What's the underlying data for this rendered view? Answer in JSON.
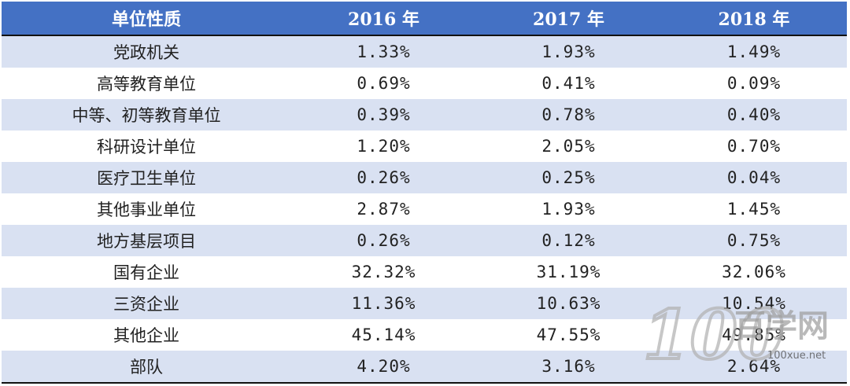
{
  "table": {
    "headers": [
      "单位性质",
      "2016 年",
      "2017 年",
      "2018 年"
    ],
    "rows": [
      [
        "党政机关",
        "1.33%",
        "1.93%",
        "1.49%"
      ],
      [
        "高等教育单位",
        "0.69%",
        "0.41%",
        "0.09%"
      ],
      [
        "中等、初等教育单位",
        "0.39%",
        "0.78%",
        "0.40%"
      ],
      [
        "科研设计单位",
        "1.20%",
        "2.05%",
        "0.70%"
      ],
      [
        "医疗卫生单位",
        "0.26%",
        "0.25%",
        "0.04%"
      ],
      [
        "其他事业单位",
        "2.87%",
        "1.93%",
        "1.45%"
      ],
      [
        "地方基层项目",
        "0.26%",
        "0.12%",
        "0.75%"
      ],
      [
        "国有企业",
        "32.32%",
        "31.19%",
        "32.06%"
      ],
      [
        "三资企业",
        "11.36%",
        "10.63%",
        "10.54%"
      ],
      [
        "其他企业",
        "45.14%",
        "47.55%",
        "49.85%"
      ],
      [
        "部队",
        "4.20%",
        "3.16%",
        "2.64%"
      ]
    ]
  },
  "watermark": {
    "logo_text": "100",
    "site_name": "百学网",
    "url": "100xue.net"
  },
  "colors": {
    "header_bg": "#4471c4",
    "header_text": "#ffffff",
    "stripe": "#d9e1f2"
  }
}
